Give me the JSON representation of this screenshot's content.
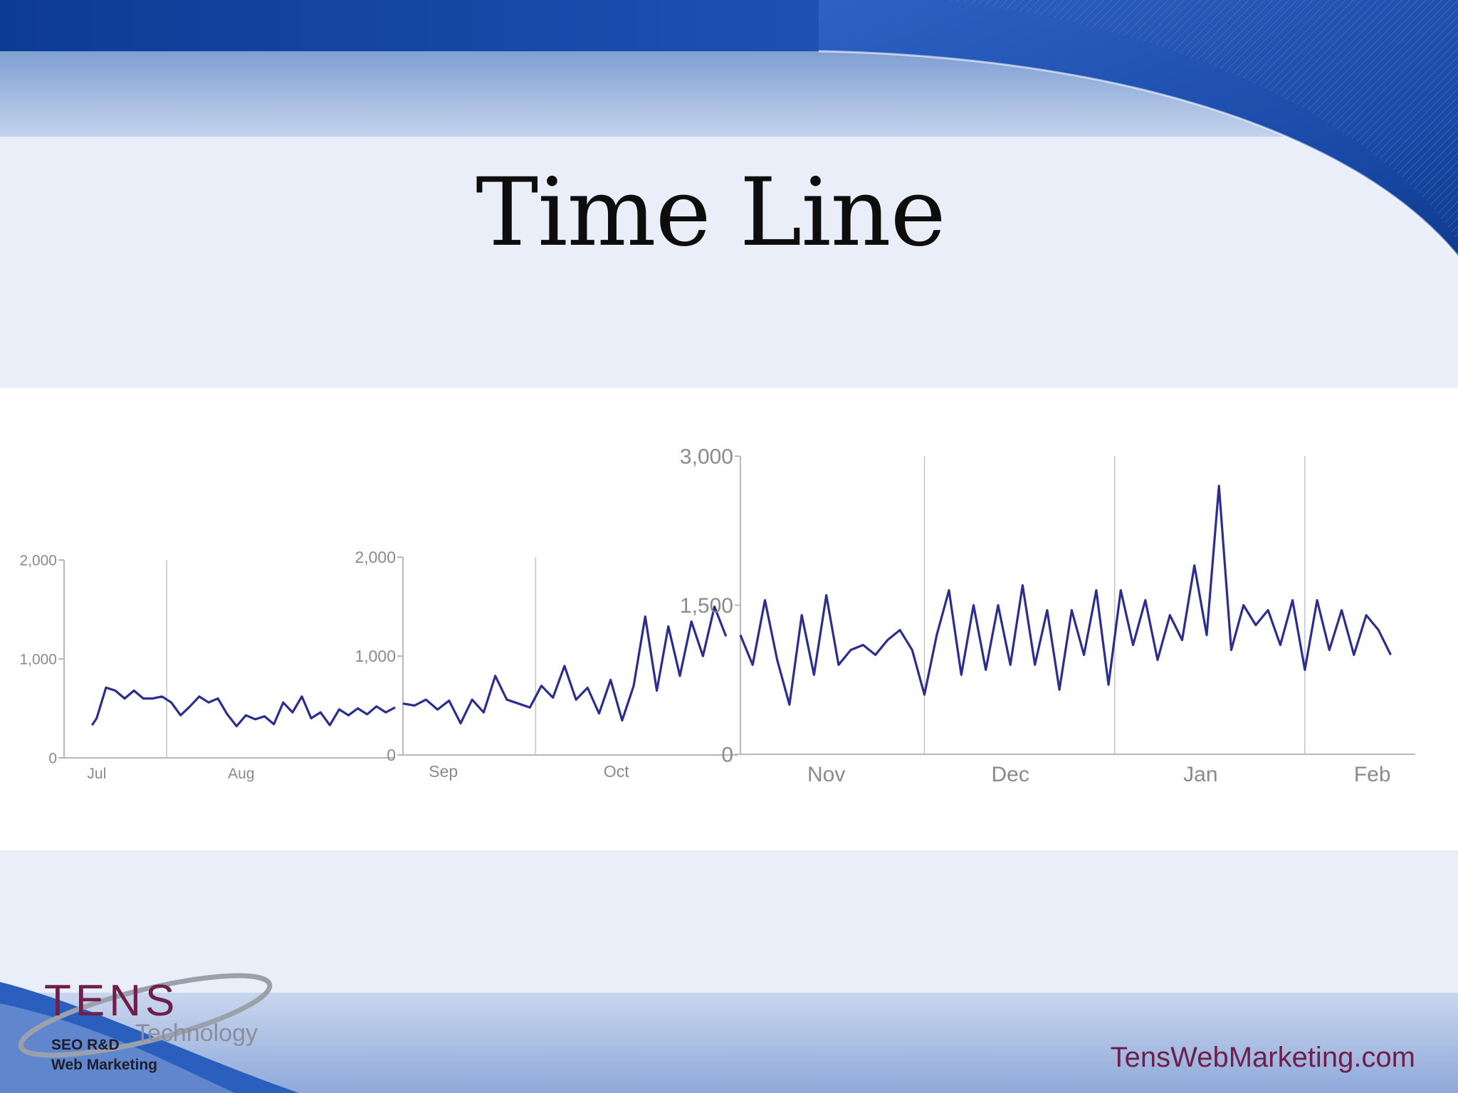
{
  "slide": {
    "title": "Time Line",
    "website": "TensWebMarketing.com",
    "colors": {
      "line": "#2b2e8e",
      "title": "#0d0d0d",
      "brand": "#6e1f4a"
    }
  },
  "logo": {
    "name": "TENS",
    "sub": "Technology",
    "tag1": "SEO R&D",
    "tag2": "Web Marketing"
  },
  "chart_data": [
    {
      "type": "line",
      "x_tick_labels": [
        "Jul",
        "Aug"
      ],
      "y_ticks": [
        0,
        1000,
        2000
      ],
      "y_tick_labels": [
        "0",
        "1,000",
        "2,000"
      ],
      "ylim": [
        0,
        2000
      ],
      "x": [
        "Jul 07",
        "Jul 08",
        "Jul 10",
        "Jul 12",
        "Jul 14",
        "Jul 16",
        "Jul 18",
        "Jul 20",
        "Jul 22",
        "Jul 24",
        "Jul 26",
        "Jul 28",
        "Jul 30",
        "Aug 01",
        "Aug 03",
        "Aug 05",
        "Aug 07",
        "Aug 09",
        "Aug 11",
        "Aug 13",
        "Aug 15",
        "Aug 17",
        "Aug 19",
        "Aug 21",
        "Aug 23",
        "Aug 25",
        "Aug 27",
        "Aug 29",
        "Aug 31",
        "Sep 02",
        "Sep 04",
        "Sep 06",
        "Sep 08",
        "Sep 10"
      ],
      "values": [
        330,
        400,
        710,
        680,
        600,
        680,
        600,
        600,
        620,
        560,
        430,
        520,
        620,
        560,
        600,
        440,
        320,
        430,
        390,
        420,
        340,
        560,
        460,
        620,
        400,
        460,
        330,
        490,
        430,
        500,
        440,
        520,
        460,
        510
      ]
    },
    {
      "type": "line",
      "x_tick_labels": [
        "Sep",
        "Oct"
      ],
      "y_ticks": [
        0,
        1000,
        2000
      ],
      "y_tick_labels": [
        "0",
        "1,000",
        "2,000"
      ],
      "ylim": [
        0,
        2000
      ],
      "x": [
        "Sep 08",
        "Sep 10",
        "Sep 12",
        "Sep 14",
        "Sep 16",
        "Sep 18",
        "Sep 20",
        "Sep 22",
        "Sep 24",
        "Sep 26",
        "Sep 28",
        "Sep 30",
        "Oct 02",
        "Oct 04",
        "Oct 06",
        "Oct 08",
        "Oct 10",
        "Oct 12",
        "Oct 14",
        "Oct 16",
        "Oct 18",
        "Oct 20",
        "Oct 22",
        "Oct 24",
        "Oct 26",
        "Oct 28",
        "Oct 30",
        "Nov 01",
        "Nov 03"
      ],
      "values": [
        520,
        500,
        560,
        460,
        550,
        320,
        560,
        430,
        800,
        560,
        520,
        480,
        700,
        580,
        900,
        560,
        680,
        420,
        760,
        350,
        700,
        1400,
        650,
        1300,
        800,
        1350,
        1000,
        1500,
        1200
      ]
    },
    {
      "type": "line",
      "x_tick_labels": [
        "Nov",
        "Dec",
        "Jan",
        "Feb"
      ],
      "y_ticks": [
        0,
        1500,
        3000
      ],
      "y_tick_labels": [
        "0",
        "1,500",
        "3,000"
      ],
      "ylim": [
        0,
        3000
      ],
      "x": [
        "Nov 01",
        "Nov 03",
        "Nov 05",
        "Nov 07",
        "Nov 09",
        "Nov 11",
        "Nov 13",
        "Nov 15",
        "Nov 17",
        "Nov 19",
        "Nov 21",
        "Nov 23",
        "Nov 25",
        "Nov 27",
        "Nov 29",
        "Dec 01",
        "Dec 03",
        "Dec 05",
        "Dec 07",
        "Dec 09",
        "Dec 11",
        "Dec 13",
        "Dec 15",
        "Dec 17",
        "Dec 19",
        "Dec 21",
        "Dec 23",
        "Dec 25",
        "Dec 27",
        "Dec 29",
        "Dec 31",
        "Jan 02",
        "Jan 04",
        "Jan 06",
        "Jan 08",
        "Jan 10",
        "Jan 12",
        "Jan 14",
        "Jan 16",
        "Jan 18",
        "Jan 20",
        "Jan 22",
        "Jan 24",
        "Jan 26",
        "Jan 28",
        "Jan 30",
        "Feb 01",
        "Feb 03",
        "Feb 05",
        "Feb 07",
        "Feb 09",
        "Feb 11",
        "Feb 13",
        "Feb 15"
      ],
      "values": [
        1200,
        900,
        1550,
        950,
        500,
        1400,
        800,
        1600,
        900,
        1050,
        1100,
        1000,
        1150,
        1250,
        1050,
        600,
        1200,
        1650,
        800,
        1500,
        850,
        1500,
        900,
        1700,
        900,
        1450,
        650,
        1450,
        1000,
        1650,
        700,
        1650,
        1100,
        1550,
        950,
        1400,
        1150,
        1900,
        1200,
        2700,
        1050,
        1500,
        1300,
        1450,
        1100,
        1550,
        850,
        1550,
        1050,
        1450,
        1000,
        1400,
        1250,
        1000
      ]
    }
  ]
}
